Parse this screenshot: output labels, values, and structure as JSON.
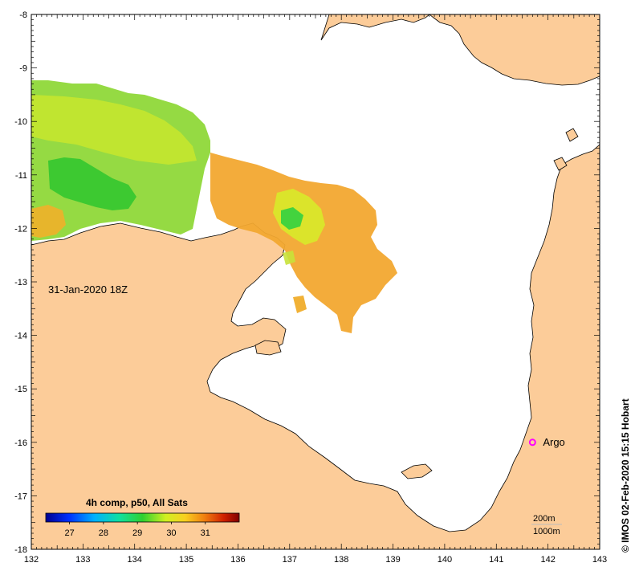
{
  "map": {
    "date_label": "31-Jan-2020 18Z",
    "credit": "© IMOS 02-Feb-2020 15:15 Hobart",
    "x_ticks": [
      "132",
      "133",
      "134",
      "135",
      "136",
      "137",
      "138",
      "139",
      "140",
      "141",
      "142",
      "143"
    ],
    "y_ticks": [
      "-8",
      "-9",
      "-10",
      "-11",
      "-12",
      "-13",
      "-14",
      "-15",
      "-16",
      "-17",
      "-18"
    ],
    "lon_range": [
      132,
      143
    ],
    "lat_range": [
      -18,
      -8
    ],
    "land_color": "#fccc99",
    "water_color": "#ffffff"
  },
  "colorbar": {
    "title": "4h comp, p50, All Sats",
    "ticks": [
      "27",
      "28",
      "29",
      "30",
      "31"
    ],
    "range": [
      26.3,
      32.0
    ]
  },
  "argo": {
    "label": "Argo",
    "lon": 141.7,
    "lat": -16.0,
    "color": "#ff00ff"
  },
  "depth_legend": {
    "line1": "200m",
    "line2": "1000m"
  }
}
